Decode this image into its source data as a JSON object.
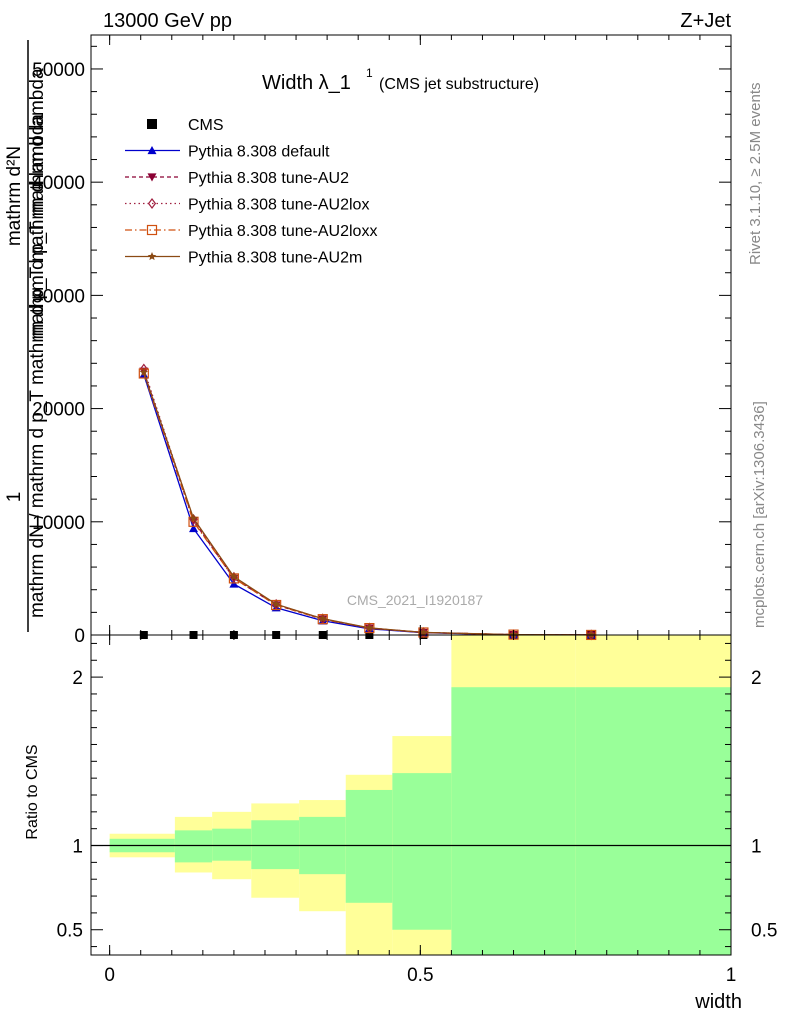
{
  "header": {
    "energy_label": "13000 GeV pp",
    "process_label": "Z+Jet"
  },
  "side_labels": {
    "rivet": "Rivet 3.1.10, ≥ 2.5M events",
    "mcplots": "mcplots.cern.ch [arXiv:1306.3436]"
  },
  "chart_data": {
    "type": "line",
    "title_main": "Width λ_1",
    "title_sup": "1",
    "title_sub": "(CMS jet substructure)",
    "watermark": "CMS_2021_I1920187",
    "xlabel": "width",
    "ylabel_top": "1",
    "ylabel_bottom": "mathrm dN / mathrm d p_T mathrm d p_T mathrm d lambda",
    "ylabel_num": "mathrm d²N",
    "ylabel_den": "mathrm d p_T mathrm d lambda",
    "ratio_ylabel": "Ratio to CMS",
    "xlim": [
      -0.03,
      1.0
    ],
    "ylim_main": [
      0,
      53000
    ],
    "ylim_ratio": [
      0.35,
      2.25
    ],
    "x_ticks": [
      0,
      0.5,
      1
    ],
    "x_tick_labels": [
      "0",
      "0.5",
      "1"
    ],
    "y_ticks_main": [
      0,
      10000,
      20000,
      30000,
      40000,
      50000
    ],
    "y_tick_labels_main": [
      "0",
      "10000",
      "20000",
      "30000",
      "40000",
      "50000"
    ],
    "y_ticks_ratio": [
      0.5,
      1,
      2
    ],
    "y_tick_labels_ratio": [
      "0.5",
      "1",
      "2"
    ],
    "x": [
      0.055,
      0.135,
      0.2,
      0.268,
      0.343,
      0.418,
      0.505,
      0.65,
      0.775
    ],
    "bin_edges": [
      0,
      0.105,
      0.165,
      0.228,
      0.305,
      0.38,
      0.455,
      0.55,
      0.75,
      1.0
    ],
    "band_yellow": {
      "lo": [
        0.93,
        0.84,
        0.8,
        0.69,
        0.61,
        0.3,
        0.3,
        0.3,
        0.3
      ],
      "hi": [
        1.07,
        1.17,
        1.2,
        1.25,
        1.27,
        1.42,
        1.65,
        2.3,
        2.3
      ]
    },
    "band_green": {
      "lo": [
        0.96,
        0.9,
        0.91,
        0.86,
        0.83,
        0.66,
        0.5,
        0.3,
        0.3
      ],
      "hi": [
        1.04,
        1.09,
        1.1,
        1.15,
        1.17,
        1.33,
        1.43,
        1.94,
        1.94
      ]
    },
    "series": [
      {
        "name": "CMS",
        "color": "#000000",
        "marker": "square",
        "dash": "none",
        "values": [
          0,
          0,
          0,
          0,
          0,
          0,
          0,
          0,
          0
        ]
      },
      {
        "name": "Pythia 8.308 default",
        "color": "#0000cc",
        "marker": "triangle-up",
        "dash": "none",
        "values": [
          23000,
          9400,
          4500,
          2400,
          1250,
          550,
          200,
          30,
          5
        ]
      },
      {
        "name": "Pythia 8.308 tune-AU2",
        "color": "#8b0033",
        "marker": "triangle-down",
        "dash": "4,3",
        "values": [
          23300,
          10100,
          5000,
          2650,
          1400,
          610,
          220,
          35,
          6
        ]
      },
      {
        "name": "Pythia 8.308 tune-AU2lox",
        "color": "#a02040",
        "marker": "diamond-open",
        "dash": "1.5,3",
        "values": [
          23500,
          10200,
          5100,
          2700,
          1430,
          620,
          225,
          36,
          6
        ]
      },
      {
        "name": "Pythia 8.308 tune-AU2loxx",
        "color": "#d05010",
        "marker": "square-open",
        "dash": "7,3,1.5,3",
        "values": [
          23100,
          10000,
          5000,
          2650,
          1400,
          610,
          222,
          35,
          6
        ]
      },
      {
        "name": "Pythia 8.308 tune-AU2m",
        "color": "#8b4a14",
        "marker": "star",
        "dash": "none",
        "values": [
          23200,
          10300,
          5150,
          2720,
          1440,
          625,
          228,
          37,
          6
        ]
      }
    ]
  }
}
